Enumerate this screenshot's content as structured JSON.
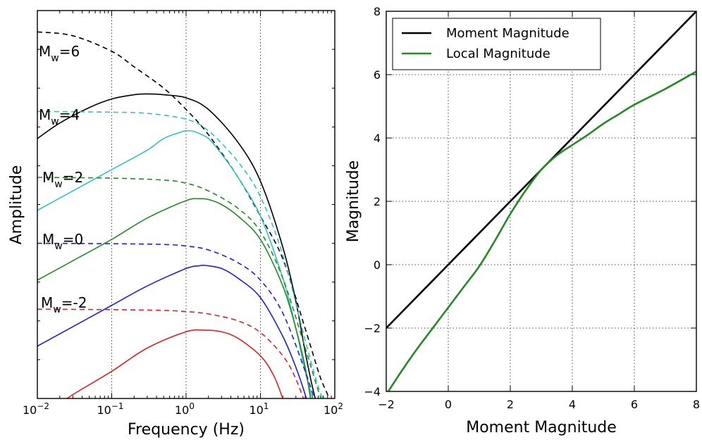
{
  "chart_data": [
    {
      "type": "line",
      "xlabel": "Frequency (Hz)",
      "ylabel": "Amplitude",
      "xscale": "log",
      "xlim": [
        0.01,
        100
      ],
      "ylim": [
        0,
        1
      ],
      "xtick_labels": [
        "10^-2",
        "10^-1",
        "10^0",
        "10^1",
        "10^2"
      ],
      "grid": true,
      "annotations": [
        "M_w=6",
        "M_w=4",
        "M_w=2",
        "M_w=0",
        "M_w=-2"
      ],
      "series": [
        {
          "magnitude": 6,
          "color": "#000000",
          "style": "dashed",
          "f": [
            0.01,
            0.03,
            0.1,
            0.2,
            0.5,
            1,
            2,
            5,
            10,
            20,
            40,
            60,
            70,
            80,
            90
          ],
          "y": [
            0.945,
            0.935,
            0.895,
            0.855,
            0.8,
            0.745,
            0.68,
            0.57,
            0.47,
            0.36,
            0.18,
            0.07,
            0.035,
            0.01,
            -0.02
          ]
        },
        {
          "magnitude": 4,
          "color": "#000000",
          "style": "solid",
          "f": [
            0.01,
            0.02,
            0.05,
            0.1,
            0.2,
            0.3,
            0.5,
            1,
            2,
            5,
            10,
            20,
            30,
            40,
            50,
            60
          ],
          "y": [
            0.67,
            0.71,
            0.75,
            0.772,
            0.783,
            0.785,
            0.783,
            0.775,
            0.745,
            0.66,
            0.56,
            0.39,
            0.25,
            0.12,
            0.03,
            -0.03
          ]
        },
        {
          "magnitude": 4,
          "color": "#2ec4c4",
          "style": "dashed",
          "f": [
            0.01,
            0.1,
            0.3,
            1,
            2,
            5,
            10,
            20,
            40,
            60,
            80
          ],
          "y": [
            0.74,
            0.738,
            0.735,
            0.72,
            0.69,
            0.61,
            0.52,
            0.37,
            0.15,
            0.03,
            -0.03
          ]
        },
        {
          "magnitude": 4,
          "color": "#2ec4c4",
          "style": "solid",
          "f": [
            0.01,
            0.03,
            0.1,
            0.3,
            0.5,
            0.8,
            1,
            1.3,
            2,
            3,
            5,
            10,
            20,
            30,
            40,
            55
          ],
          "y": [
            0.485,
            0.535,
            0.59,
            0.64,
            0.67,
            0.685,
            0.69,
            0.688,
            0.67,
            0.63,
            0.57,
            0.47,
            0.31,
            0.18,
            0.07,
            -0.03
          ]
        },
        {
          "magnitude": 2,
          "color": "#228b22",
          "style": "dashed",
          "f": [
            0.01,
            0.1,
            0.5,
            1,
            2,
            5,
            10,
            20,
            40,
            60,
            75
          ],
          "y": [
            0.57,
            0.568,
            0.563,
            0.555,
            0.535,
            0.49,
            0.43,
            0.31,
            0.13,
            0.02,
            -0.03
          ]
        },
        {
          "magnitude": 2,
          "color": "#228b22",
          "style": "solid",
          "f": [
            0.01,
            0.03,
            0.1,
            0.3,
            1,
            1.5,
            2,
            3,
            5,
            10,
            20,
            30,
            40,
            50
          ],
          "y": [
            0.305,
            0.355,
            0.41,
            0.465,
            0.51,
            0.515,
            0.513,
            0.5,
            0.47,
            0.41,
            0.29,
            0.18,
            0.08,
            -0.03
          ]
        },
        {
          "magnitude": 0,
          "color": "#1c1cf0",
          "style": "dashed",
          "f": [
            0.01,
            0.1,
            0.5,
            1,
            2,
            5,
            10,
            20,
            40,
            55,
            65
          ],
          "y": [
            0.4,
            0.399,
            0.397,
            0.393,
            0.383,
            0.35,
            0.305,
            0.22,
            0.07,
            -0.01,
            -0.04
          ]
        },
        {
          "magnitude": 0,
          "color": "#1c1cf0",
          "style": "solid",
          "f": [
            0.01,
            0.03,
            0.1,
            0.3,
            1,
            1.5,
            1.8,
            3,
            5,
            10,
            20,
            30,
            40,
            45
          ],
          "y": [
            0.135,
            0.185,
            0.24,
            0.29,
            0.335,
            0.342,
            0.343,
            0.335,
            0.31,
            0.26,
            0.16,
            0.08,
            0.01,
            -0.03
          ]
        },
        {
          "magnitude": -2,
          "color": "#e61e1e",
          "style": "dashed",
          "f": [
            0.01,
            0.1,
            0.5,
            1,
            2,
            5,
            10,
            20,
            30,
            45
          ],
          "y": [
            0.23,
            0.229,
            0.227,
            0.224,
            0.218,
            0.2,
            0.17,
            0.11,
            0.05,
            -0.04
          ]
        },
        {
          "magnitude": -2,
          "color": "#e61e1e",
          "style": "solid",
          "f": [
            0.02,
            0.03,
            0.1,
            0.3,
            1,
            1.8,
            3,
            5,
            10,
            15,
            20
          ],
          "y": [
            -0.015,
            0.01,
            0.07,
            0.13,
            0.172,
            0.176,
            0.172,
            0.155,
            0.11,
            0.06,
            0.0
          ]
        }
      ]
    },
    {
      "type": "line",
      "xlabel": "Moment Magnitude",
      "ylabel": "Magnitude",
      "xlim": [
        -2,
        8
      ],
      "ylim": [
        -4,
        8
      ],
      "xticks": [
        -2,
        0,
        2,
        4,
        6,
        8
      ],
      "yticks": [
        -4,
        -2,
        0,
        2,
        4,
        6,
        8
      ],
      "grid": true,
      "legend_position": "top-left",
      "series": [
        {
          "name": "Moment Magnitude",
          "color": "#000000",
          "x": [
            -2,
            8
          ],
          "y": [
            -2,
            8
          ]
        },
        {
          "name": "Local Magnitude",
          "color": "#228b22",
          "x": [
            -2,
            -1.5,
            -1,
            -0.5,
            0,
            0.5,
            1,
            1.5,
            2,
            2.5,
            3,
            3.5,
            4,
            4.5,
            5,
            5.5,
            6,
            7,
            8
          ],
          "y": [
            -4.1,
            -3.35,
            -2.65,
            -2.0,
            -1.35,
            -0.7,
            -0.05,
            0.75,
            1.6,
            2.35,
            3.0,
            3.45,
            3.78,
            4.1,
            4.45,
            4.75,
            5.05,
            5.55,
            6.1
          ]
        }
      ]
    }
  ]
}
